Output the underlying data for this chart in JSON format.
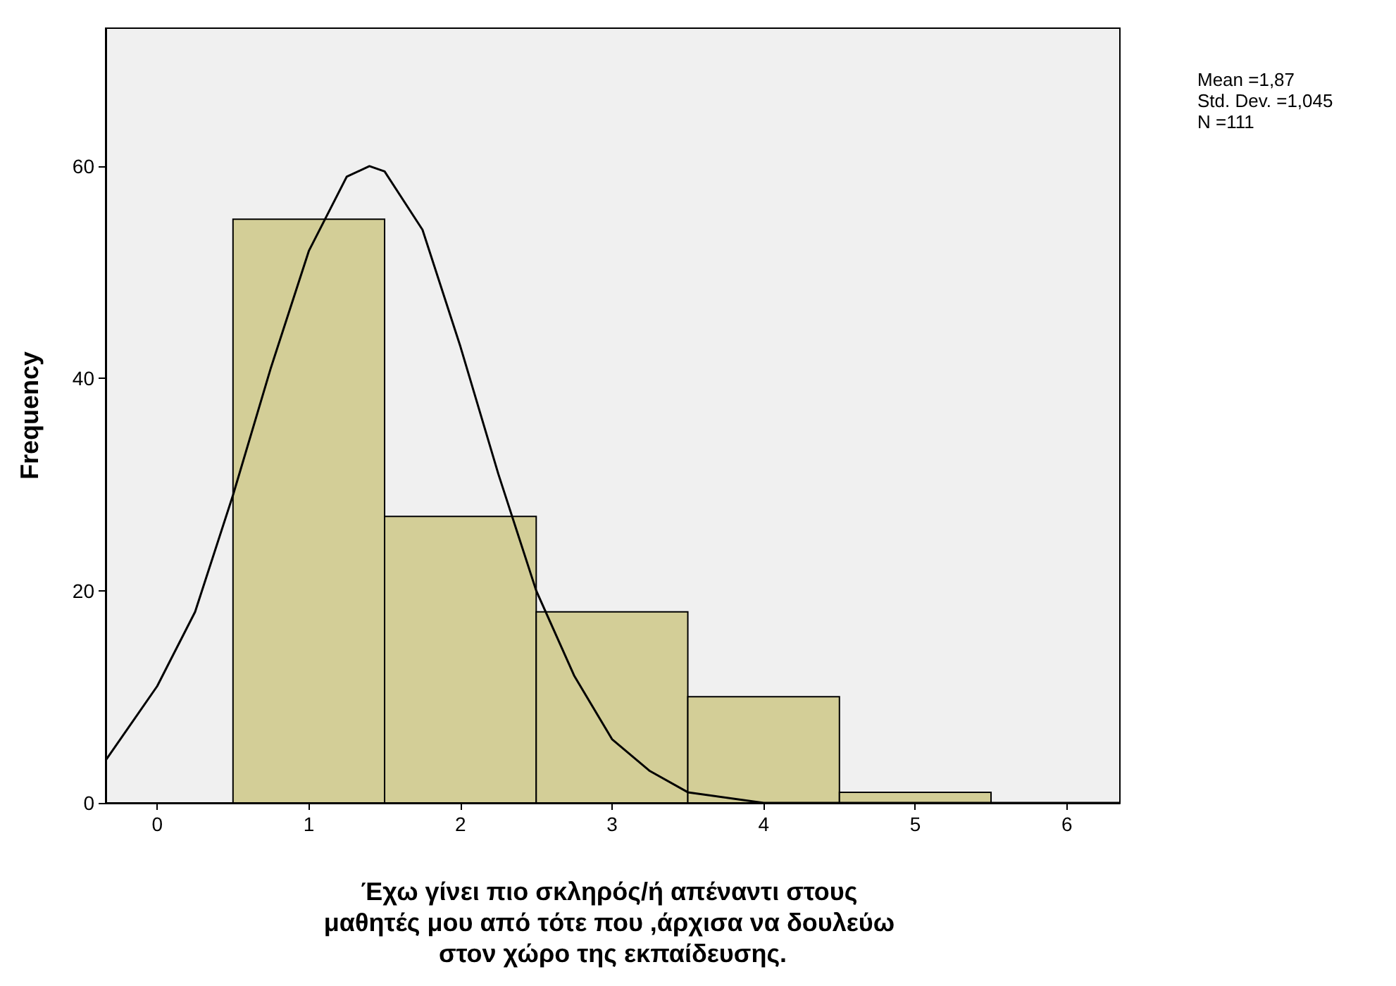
{
  "chart_data": {
    "type": "histogram",
    "xlabel": "Έχω γίνει πιο σκληρός/ή απέναντι στους μαθητές μου από τότε που ,άρχισα να δουλεύω στον χώρο της εκπαίδευσης.",
    "ylabel": "Frequency",
    "annotations": [
      "Mean =1,87",
      "Std. Dev. =1,045",
      "N =111"
    ],
    "bins": [
      0.5,
      1.5,
      2.5,
      3.5,
      4.5,
      5.5
    ],
    "values": [
      55,
      27,
      18,
      10,
      1
    ],
    "color": "#d3ce97",
    "series": [
      {
        "type": "line",
        "color": "#000000",
        "x": [
          -0.34,
          0,
          0.25,
          0.5,
          0.75,
          1,
          1.25,
          1.4,
          1.5,
          1.75,
          2,
          2.25,
          2.5,
          2.75,
          3,
          3.25,
          3.5,
          4,
          4.5,
          5,
          6,
          6.35
        ],
        "values": [
          4,
          11,
          18,
          29,
          41,
          52,
          59,
          60,
          59.5,
          54,
          43,
          31,
          20,
          12,
          6,
          3,
          1,
          0,
          0,
          0,
          0,
          0
        ]
      }
    ],
    "xlim": [
      -0.34,
      6.35
    ],
    "xticks": [
      0,
      1,
      2,
      3,
      4,
      5,
      6
    ],
    "ylim": [
      0,
      73
    ],
    "yticks": [
      0,
      20,
      40,
      60
    ],
    "grid": false
  }
}
